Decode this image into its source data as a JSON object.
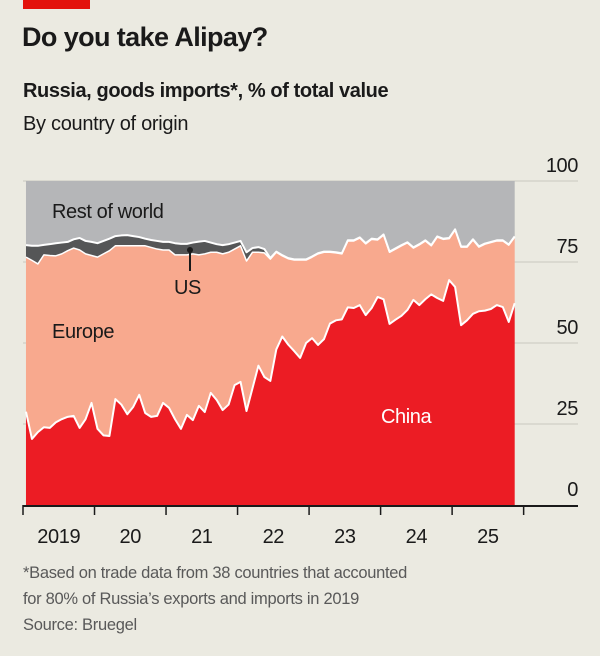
{
  "header": {
    "title": "Do you take Alipay?",
    "subtitle": "Russia, goods imports*, % of total value",
    "description": "By country of origin"
  },
  "footer": {
    "note_line1": "*Based on trade data from 38 countries that accounted",
    "note_line2": "for 80% of Russia’s exports and imports in 2019",
    "source": "Source: Bruegel"
  },
  "colors": {
    "brand": "#e3120b",
    "China": "#ec1c24",
    "Europe": "#f8a98e",
    "US": "#555657",
    "Rest of world": "#b5b6b8",
    "background": "#ebeae1"
  },
  "chart_data": {
    "type": "area",
    "stacked": true,
    "ylim": [
      0,
      100
    ],
    "yticks": [
      "0",
      "25",
      "50",
      "75",
      "100"
    ],
    "xtick_labels": [
      "2019",
      "20",
      "21",
      "22",
      "23",
      "24",
      "25"
    ],
    "grid": true,
    "x": [
      "2019-01",
      "2019-02",
      "2019-03",
      "2019-04",
      "2019-05",
      "2019-06",
      "2019-07",
      "2019-08",
      "2019-09",
      "2019-10",
      "2019-11",
      "2019-12",
      "2020-01",
      "2020-02",
      "2020-03",
      "2020-04",
      "2020-05",
      "2020-06",
      "2020-07",
      "2020-08",
      "2020-09",
      "2020-10",
      "2020-11",
      "2020-12",
      "2021-01",
      "2021-02",
      "2021-03",
      "2021-04",
      "2021-05",
      "2021-06",
      "2021-07",
      "2021-08",
      "2021-09",
      "2021-10",
      "2021-11",
      "2021-12",
      "2022-01",
      "2022-02",
      "2022-03",
      "2022-04",
      "2022-05",
      "2022-06",
      "2022-07",
      "2022-08",
      "2022-09",
      "2022-10",
      "2022-11",
      "2022-12",
      "2023-01",
      "2023-02",
      "2023-03",
      "2023-04",
      "2023-05",
      "2023-06",
      "2023-07",
      "2023-08",
      "2023-09",
      "2023-10",
      "2023-11",
      "2023-12",
      "2024-01",
      "2024-02",
      "2024-03",
      "2024-04",
      "2024-05",
      "2024-06",
      "2024-07",
      "2024-08",
      "2024-09",
      "2024-10",
      "2024-11",
      "2024-12",
      "2025-01",
      "2025-02",
      "2025-03",
      "2025-04",
      "2025-05",
      "2025-06",
      "2025-07",
      "2025-08",
      "2025-09",
      "2025-10",
      "2025-11"
    ],
    "series": [
      {
        "name": "China",
        "values": [
          28.8,
          20.4,
          22.5,
          24,
          23.8,
          25.5,
          26.5,
          27.2,
          27.5,
          23.8,
          26.5,
          31.5,
          23.5,
          21.5,
          21.3,
          32.7,
          31,
          28,
          30.3,
          34,
          28.4,
          27.2,
          27.5,
          31.5,
          30,
          26.5,
          23.5,
          27.8,
          26.2,
          30.6,
          28.7,
          34.6,
          32.4,
          29.3,
          31,
          37,
          38,
          29,
          36,
          43,
          39.5,
          38.3,
          48,
          52,
          49.5,
          47.5,
          45.4,
          50,
          51.5,
          49.4,
          51.2,
          56,
          57,
          57.3,
          61,
          60.8,
          61.7,
          58.6,
          60.8,
          64.2,
          63.5,
          55.9,
          57.2,
          58.4,
          60.2,
          63.3,
          61.7,
          63.5,
          65,
          63.9,
          63,
          69.4,
          67.3,
          55.5,
          57,
          59,
          59.8,
          60,
          60.5,
          61.7,
          61.1,
          56.5,
          62.3
        ]
      },
      {
        "name": "Europe",
        "values": [
          47.7,
          55.1,
          51.9,
          53.2,
          53.2,
          51.4,
          51,
          51.3,
          51.8,
          54.9,
          51,
          45.5,
          53,
          56,
          57.2,
          47.3,
          49,
          52,
          49.7,
          46,
          51.6,
          52.3,
          51.5,
          47.2,
          48.7,
          50.7,
          53.7,
          49.4,
          51.3,
          46.6,
          48.8,
          43.4,
          45.6,
          48.2,
          47,
          42,
          42,
          46.3,
          42,
          35,
          38.3,
          37.6,
          30,
          24.9,
          26.5,
          28.1,
          30.2,
          25.6,
          25,
          28.1,
          26.8,
          22,
          20.8,
          20.2,
          20.5,
          20.7,
          20.7,
          22,
          21.2,
          17.6,
          19.8,
          22.1,
          21.8,
          21.6,
          20.7,
          16,
          18.6,
          18,
          15,
          18.8,
          19,
          12.8,
          17.6,
          24.1,
          22.6,
          22.8,
          19.8,
          20.5,
          20.5,
          19.8,
          20.4,
          23.7,
          20.4
        ]
      },
      {
        "name": "US",
        "values": [
          3.7,
          4.5,
          5.6,
          3.1,
          3.5,
          3.9,
          3.5,
          2.7,
          2.7,
          3.7,
          4,
          4.2,
          4.3,
          4,
          3.7,
          3,
          3.2,
          3.3,
          3,
          2.7,
          2.2,
          2.3,
          2.5,
          2.5,
          2.5,
          3.6,
          3.4,
          3.4,
          3.5,
          4.1,
          4,
          3,
          2.5,
          2.7,
          2.5,
          2,
          1.5,
          2.7,
          1.3,
          1.6,
          1.2,
          0.3,
          0.2,
          0.2,
          0.2,
          0.2,
          0.2,
          0.2,
          0.2,
          0.2,
          0.2,
          0.2,
          0.2,
          0.2,
          0.2,
          0.2,
          0.2,
          0.2,
          0.2,
          0.2,
          0.2,
          0.2,
          0.2,
          0.2,
          0.2,
          0.2,
          0.2,
          0.2,
          0.2,
          0.2,
          0.2,
          0.2,
          0.2,
          0.2,
          0.2,
          0.2,
          0.2,
          0.2,
          0.2,
          0.2,
          0.2,
          0.2,
          0.2
        ]
      },
      {
        "name": "Rest of world",
        "values": [
          19.8,
          20,
          20,
          19.7,
          19.5,
          19.2,
          19,
          18.8,
          18,
          17.6,
          18.5,
          18.8,
          19.2,
          18.5,
          17.8,
          17,
          16.8,
          16.7,
          17,
          17.3,
          17.8,
          18.2,
          18.5,
          18.8,
          18.8,
          19.2,
          19.4,
          19.4,
          19,
          18.7,
          18.5,
          19,
          19.5,
          19.8,
          19.5,
          19,
          18.5,
          22,
          20.7,
          20.4,
          21,
          23.8,
          21.8,
          22.9,
          23.8,
          24.2,
          24.2,
          24.2,
          23.3,
          22.3,
          21.8,
          21.8,
          22,
          22.3,
          18.3,
          18.3,
          17.4,
          19.2,
          17.8,
          18,
          16.5,
          21.8,
          20.8,
          19.8,
          18.9,
          20.5,
          19.5,
          18.3,
          19.8,
          17.1,
          17.8,
          17.6,
          14.9,
          20.2,
          20.2,
          18,
          20.2,
          19.3,
          18.8,
          18.3,
          18.3,
          19.6,
          17.1
        ]
      }
    ],
    "annotations": [
      "Rest of world",
      "US",
      "Europe",
      "China"
    ]
  }
}
